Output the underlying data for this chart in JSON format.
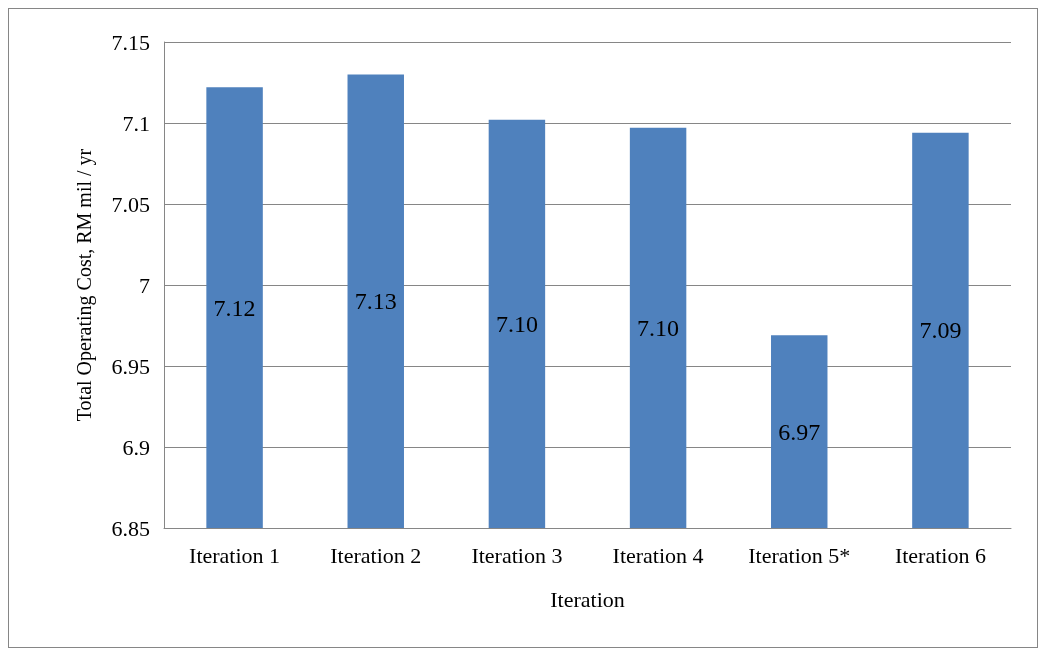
{
  "chart_data": {
    "type": "bar",
    "xlabel": "Iteration",
    "ylabel": "Total Operating Cost, RM mil / yr",
    "categories": [
      "Iteration 1",
      "Iteration 2",
      "Iteration 3",
      "Iteration 4",
      "Iteration 5*",
      "Iteration 6"
    ],
    "values": [
      7.122,
      7.13,
      7.102,
      7.097,
      6.969,
      7.094
    ],
    "value_labels": [
      "7.12",
      "7.13",
      "7.10",
      "7.10",
      "6.97",
      "7.09"
    ],
    "color": "#4f81bd",
    "ylim": [
      6.85,
      7.15
    ],
    "yticks": [
      6.85,
      6.9,
      6.95,
      7,
      7.05,
      7.1,
      7.15
    ],
    "grid": "y"
  }
}
